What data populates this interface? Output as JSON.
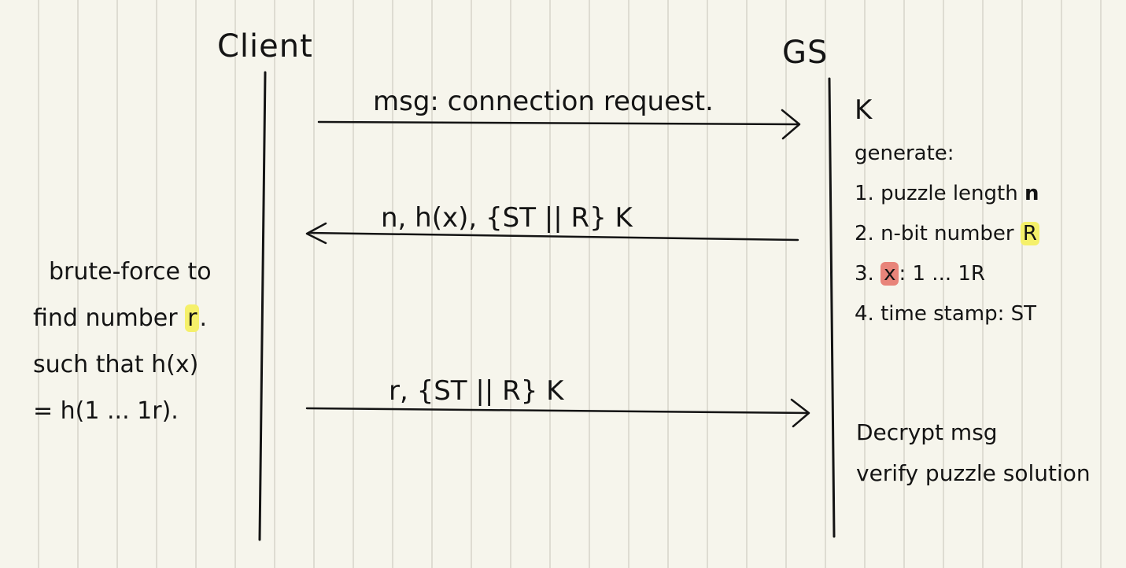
{
  "actors": {
    "client": "Client",
    "server": "GS"
  },
  "messages": [
    {
      "label": "msg: connection request.",
      "direction": "client-to-server"
    },
    {
      "label": "n, h(x), {ST || R} K",
      "direction": "server-to-client"
    },
    {
      "label": "r, {ST || R} K",
      "direction": "client-to-server"
    }
  ],
  "server_notes": {
    "key": "K",
    "heading": "generate:",
    "items": {
      "i1_prefix": "1. puzzle length ",
      "i1_mark": "n",
      "i2_prefix": "2. n-bit number ",
      "i2_mark": "R",
      "i3_prefix": "3. ",
      "i3_mark": "x",
      "i3_suffix": ": 1 ... 1R",
      "i4": "4. time stamp: ST"
    }
  },
  "client_notes": {
    "line1": "brute-force to",
    "line2_prefix": "find number ",
    "line2_mark": "r",
    "line2_suffix": ".",
    "line3": "such that h(x)",
    "line4": "= h(1 ... 1r)."
  },
  "server_final": {
    "line1": "Decrypt msg",
    "line2": "verify puzzle solution"
  },
  "colors": {
    "ink": "#141414",
    "paper": "#f6f5ec",
    "highlight_yellow": "#f5f06a",
    "highlight_red": "#e8847a"
  }
}
